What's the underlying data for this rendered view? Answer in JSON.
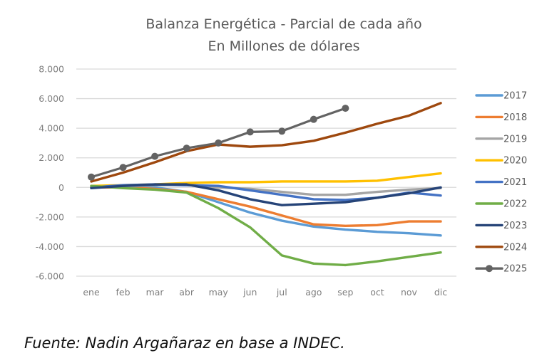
{
  "chart_data": {
    "type": "line",
    "title": "Balanza Energética - Parcial de cada año",
    "subtitle": "En Millones de dólares",
    "xlabel": "",
    "ylabel": "",
    "categories": [
      "ene",
      "feb",
      "mar",
      "abr",
      "may",
      "jun",
      "jul",
      "ago",
      "sep",
      "oct",
      "nov",
      "dic"
    ],
    "ylim": [
      -6000,
      8000
    ],
    "yticks": [
      8000,
      6000,
      4000,
      2000,
      0,
      -2000,
      -4000,
      -6000
    ],
    "ytick_labels": [
      "8.000",
      "6.000",
      "4.000",
      "2.000",
      "0",
      "-2.000",
      "-4.000",
      "-6.000"
    ],
    "grid": true,
    "legend_position": "right",
    "series": [
      {
        "name": "2017",
        "color": "#5b9bd5",
        "marker": false,
        "values": [
          0,
          50,
          0,
          -300,
          -1000,
          -1700,
          -2250,
          -2650,
          -2850,
          -3000,
          -3100,
          -3250
        ]
      },
      {
        "name": "2018",
        "color": "#ed7d31",
        "marker": false,
        "values": [
          0,
          0,
          -100,
          -300,
          -800,
          -1300,
          -1900,
          -2500,
          -2600,
          -2550,
          -2300,
          -2300
        ]
      },
      {
        "name": "2019",
        "color": "#a5a5a5",
        "marker": false,
        "values": [
          50,
          50,
          150,
          200,
          0,
          -100,
          -300,
          -500,
          -500,
          -300,
          -150,
          -50
        ]
      },
      {
        "name": "2020",
        "color": "#ffc000",
        "marker": false,
        "values": [
          100,
          150,
          200,
          300,
          350,
          350,
          400,
          400,
          400,
          450,
          700,
          950
        ]
      },
      {
        "name": "2021",
        "color": "#4472c4",
        "marker": false,
        "values": [
          0,
          150,
          200,
          150,
          100,
          -200,
          -500,
          -800,
          -850,
          -700,
          -350,
          -550
        ]
      },
      {
        "name": "2022",
        "color": "#70ad47",
        "marker": false,
        "values": [
          100,
          -50,
          -150,
          -350,
          -1400,
          -2700,
          -4600,
          -5150,
          -5250,
          -5000,
          -4700,
          -4400
        ]
      },
      {
        "name": "2023",
        "color": "#264478",
        "marker": false,
        "values": [
          -50,
          100,
          200,
          200,
          -200,
          -800,
          -1200,
          -1100,
          -1000,
          -700,
          -400,
          0
        ]
      },
      {
        "name": "2024",
        "color": "#9e480e",
        "marker": false,
        "values": [
          400,
          1000,
          1700,
          2450,
          2900,
          2750,
          2850,
          3150,
          3700,
          4300,
          4850,
          5700
        ]
      },
      {
        "name": "2025",
        "color": "#636363",
        "marker": true,
        "values": [
          700,
          1350,
          2100,
          2650,
          3000,
          3750,
          3800,
          4600,
          5350,
          null,
          null,
          null
        ]
      }
    ]
  },
  "source_note": "Fuente: Nadin Argañaraz en base a INDEC."
}
